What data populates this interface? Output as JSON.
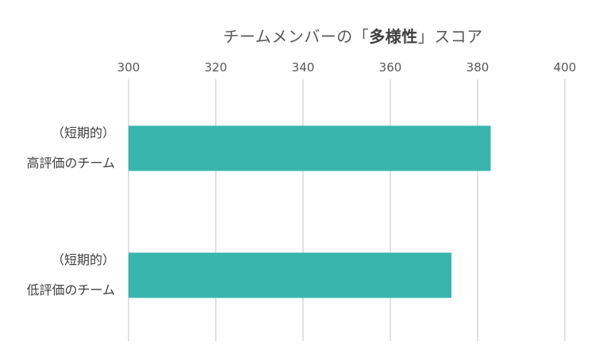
{
  "chart_data": {
    "type": "bar",
    "orientation": "horizontal",
    "title_prefix": "チームメンバーの「",
    "title_emphasis": "多様性",
    "title_suffix": "」スコア",
    "xlim": [
      300,
      400
    ],
    "xticks": [
      300,
      320,
      340,
      360,
      380,
      400
    ],
    "axis_position": "top",
    "grid": true,
    "legend": "none",
    "bar_color": "#38B6AE",
    "categories": [
      [
        "（短期的）",
        "高評価のチーム"
      ],
      [
        "（短期的）",
        "低評価のチーム"
      ]
    ],
    "values": [
      383,
      374
    ]
  }
}
